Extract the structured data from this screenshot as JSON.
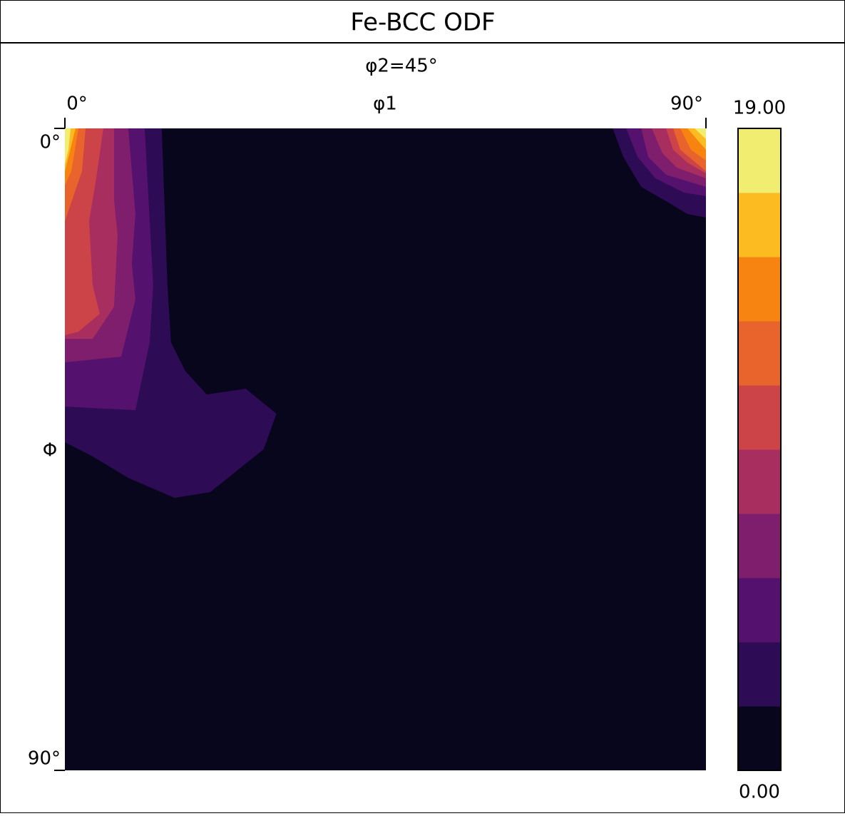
{
  "chart_data": {
    "type": "contour",
    "title": "Fe-BCC ODF",
    "subtitle": "φ2=45°",
    "x_label": "φ1",
    "y_label": "Φ",
    "xlim": [
      0,
      90
    ],
    "ylim": [
      0,
      90
    ],
    "xticks": [
      {
        "value": 0,
        "label": "0°"
      },
      {
        "value": 90,
        "label": "90°"
      }
    ],
    "yticks": [
      {
        "value": 0,
        "label": "0°"
      },
      {
        "value": 90,
        "label": "90°"
      }
    ],
    "clim": [
      0,
      19
    ],
    "cticks": [
      {
        "value": 0,
        "label": "0.00"
      },
      {
        "value": 19,
        "label": "19.00"
      }
    ],
    "colors": [
      "#07061c",
      "#2d0b55",
      "#55116e",
      "#7e1e6c",
      "#a82e5f",
      "#cc4348",
      "#e9632c",
      "#f78311",
      "#fbbb21",
      "#f1ed71"
    ],
    "regions": [
      {
        "level": 1,
        "points": [
          [
            0,
            0
          ],
          [
            13.6,
            0
          ],
          [
            14.4,
            22
          ],
          [
            14.9,
            30
          ],
          [
            16.9,
            34
          ],
          [
            19.9,
            37.3
          ],
          [
            25.4,
            36.5
          ],
          [
            29.7,
            40
          ],
          [
            27.9,
            45
          ],
          [
            20.4,
            51
          ],
          [
            15.4,
            51.8
          ],
          [
            8.9,
            49
          ],
          [
            3.9,
            46
          ],
          [
            0,
            44
          ]
        ]
      },
      {
        "level": 1,
        "points": [
          [
            90,
            0
          ],
          [
            76.9,
            0
          ],
          [
            78.4,
            4
          ],
          [
            80.9,
            8.2
          ],
          [
            84.9,
            10.5
          ],
          [
            87.4,
            12
          ],
          [
            90,
            12.5
          ]
        ]
      },
      {
        "level": 2,
        "points": [
          [
            0,
            0
          ],
          [
            11.2,
            0
          ],
          [
            12.4,
            22
          ],
          [
            11.9,
            30
          ],
          [
            9.9,
            39.5
          ],
          [
            0,
            39
          ]
        ]
      },
      {
        "level": 2,
        "points": [
          [
            90,
            0
          ],
          [
            78.8,
            0
          ],
          [
            80.4,
            4
          ],
          [
            82.9,
            7
          ],
          [
            86.9,
            9
          ],
          [
            90,
            9.5
          ]
        ]
      },
      {
        "level": 3,
        "points": [
          [
            0,
            0
          ],
          [
            8.9,
            0
          ],
          [
            9.9,
            12
          ],
          [
            9.4,
            19
          ],
          [
            9.9,
            24
          ],
          [
            7.9,
            32
          ],
          [
            0,
            32.8
          ]
        ]
      },
      {
        "level": 3,
        "points": [
          [
            90,
            0
          ],
          [
            80.9,
            0
          ],
          [
            81.9,
            4
          ],
          [
            84.4,
            6.5
          ],
          [
            90,
            8.2
          ]
        ]
      },
      {
        "level": 4,
        "points": [
          [
            0,
            0
          ],
          [
            6.9,
            0
          ],
          [
            6.9,
            10
          ],
          [
            7.4,
            15
          ],
          [
            6.9,
            25
          ],
          [
            3.9,
            29.5
          ],
          [
            0,
            29.5
          ]
        ]
      },
      {
        "level": 4,
        "points": [
          [
            90,
            0
          ],
          [
            82.4,
            0
          ],
          [
            83.9,
            3.5
          ],
          [
            85.9,
            5.5
          ],
          [
            90,
            7
          ]
        ]
      },
      {
        "level": 5,
        "points": [
          [
            0,
            0
          ],
          [
            5.4,
            0
          ],
          [
            4.4,
            7
          ],
          [
            3.4,
            13
          ],
          [
            3.9,
            22
          ],
          [
            4.9,
            26
          ],
          [
            1.9,
            28.5
          ],
          [
            0,
            29
          ]
        ]
      },
      {
        "level": 5,
        "points": [
          [
            90,
            0
          ],
          [
            84.4,
            0
          ],
          [
            85.4,
            3
          ],
          [
            87.4,
            4.8
          ],
          [
            90,
            6.3
          ]
        ]
      },
      {
        "level": 6,
        "points": [
          [
            0,
            0
          ],
          [
            2.9,
            0
          ],
          [
            2.4,
            6
          ],
          [
            0,
            13
          ]
        ]
      },
      {
        "level": 6,
        "points": [
          [
            90,
            0
          ],
          [
            85.4,
            0
          ],
          [
            86.4,
            3
          ],
          [
            90,
            6
          ]
        ]
      },
      {
        "level": 7,
        "points": [
          [
            0,
            0
          ],
          [
            1.9,
            0
          ],
          [
            0.9,
            6
          ],
          [
            0,
            8
          ]
        ]
      },
      {
        "level": 7,
        "points": [
          [
            90,
            0
          ],
          [
            86.4,
            0
          ],
          [
            87.9,
            3
          ],
          [
            90,
            4.5
          ]
        ]
      },
      {
        "level": 8,
        "points": [
          [
            0,
            0
          ],
          [
            1.5,
            0
          ],
          [
            0,
            6
          ]
        ]
      },
      {
        "level": 8,
        "points": [
          [
            90,
            0
          ],
          [
            87.4,
            0
          ],
          [
            90,
            3
          ]
        ]
      },
      {
        "level": 9,
        "points": [
          [
            0,
            0
          ],
          [
            0.8,
            0
          ],
          [
            0.5,
            3
          ],
          [
            0,
            5
          ]
        ]
      },
      {
        "level": 9,
        "points": [
          [
            90,
            0
          ],
          [
            88.4,
            0
          ],
          [
            90,
            1.5
          ]
        ]
      }
    ]
  }
}
